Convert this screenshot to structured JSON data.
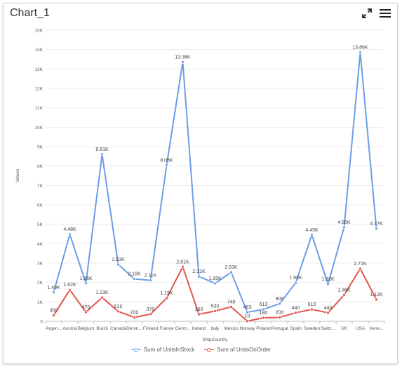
{
  "header": {
    "title": "Chart_1",
    "expand_icon": "expand-icon",
    "menu_icon": "hamburger-menu-icon"
  },
  "chart_data": {
    "type": "line",
    "xlabel": "ShipCountry",
    "ylabel": "Values",
    "ylim": [
      0,
      15000
    ],
    "yticks": [
      "0",
      "1K",
      "2K",
      "3K",
      "4K",
      "5K",
      "6K",
      "7K",
      "8K",
      "9K",
      "10K",
      "11K",
      "12K",
      "13K",
      "14K",
      "15K"
    ],
    "grid": true,
    "legend_position": "bottom",
    "categories": [
      "Argen...",
      "Austria",
      "Belgium",
      "Brazil",
      "Canada",
      "Denm...",
      "Finland",
      "France",
      "Germ...",
      "Ireland",
      "Italy",
      "Mexico",
      "Norway",
      "Poland",
      "Portugal",
      "Spain",
      "Sweden",
      "Switz...",
      "UK",
      "USA",
      "Vene..."
    ],
    "series": [
      {
        "name": "Sum of UnitsInStock",
        "color": "#6b9de8",
        "values": [
          1490,
          4480,
          1960,
          8610,
          2930,
          2180,
          2110,
          8050,
          13360,
          2310,
          1950,
          2530,
          463,
          613,
          906,
          1980,
          4450,
          1920,
          4850,
          13860,
          4770
        ],
        "labels": [
          "1.49K",
          "4.48K",
          "1.96K",
          "8.61K",
          "2.93K",
          "2.18K",
          "2.11K",
          "8.05K",
          "13.36K",
          "2.31K",
          "1.95K",
          "2.53K",
          "463",
          "613",
          "906",
          "1.98K",
          "4.45K",
          "1.92K",
          "4.85K",
          "13.86K",
          "4.77K"
        ]
      },
      {
        "name": "Sum of UnitsOnOrder",
        "color": "#e0554d",
        "values": [
          300,
          1620,
          470,
          1230,
          510,
          200,
          370,
          1190,
          2810,
          360,
          530,
          740,
          10,
          180,
          200,
          440,
          610,
          440,
          1360,
          2710,
          1120
        ],
        "labels": [
          "300",
          "1.62K",
          "470",
          "1.23K",
          "510",
          "200",
          "370",
          "1.19K",
          "2.81K",
          "360",
          "530",
          "740",
          "10",
          "180",
          "200",
          "440",
          "610",
          "440",
          "1.36K",
          "2.71K",
          "1.12K"
        ]
      }
    ]
  }
}
